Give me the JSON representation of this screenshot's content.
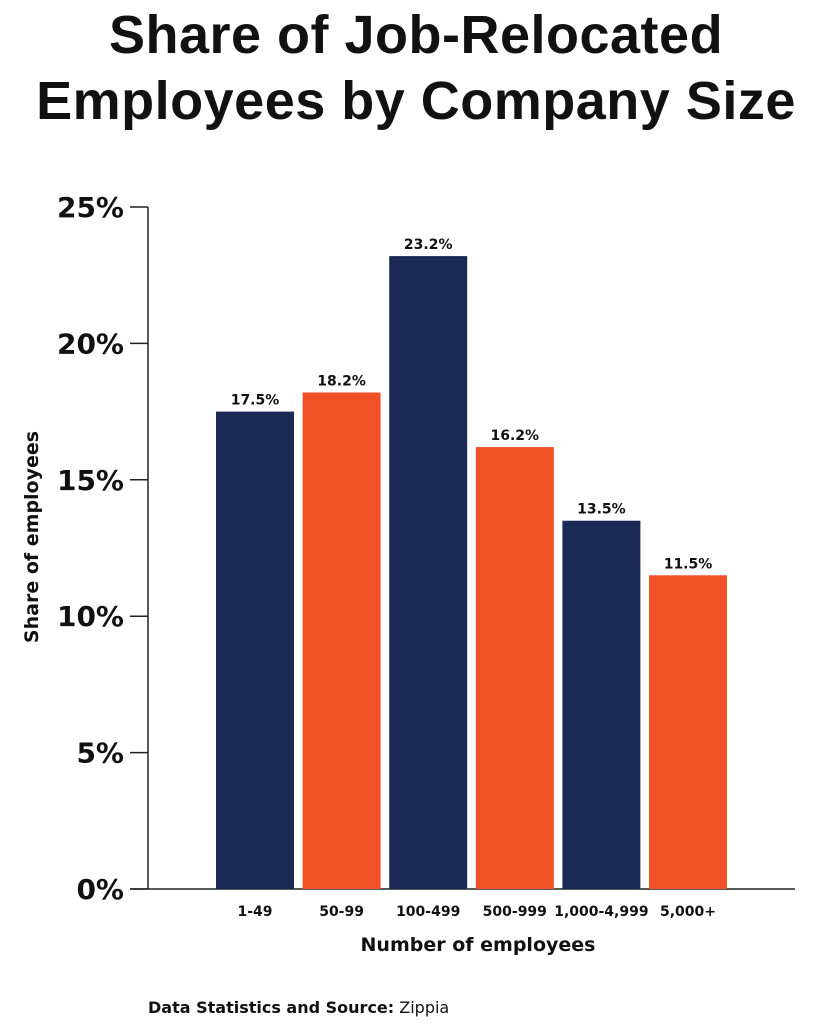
{
  "chart_data": {
    "type": "bar",
    "title": "Share of Job-Relocated Employees by Company Size",
    "categories": [
      "1-49",
      "50-99",
      "100-499",
      "500-999",
      "1,000-4,999",
      "5,000+"
    ],
    "values": [
      17.5,
      18.2,
      23.2,
      16.2,
      13.5,
      11.5
    ],
    "data_labels": [
      "17.5%",
      "18.2%",
      "23.2%",
      "16.2%",
      "13.5%",
      "11.5%"
    ],
    "xlabel": "Number of employees",
    "ylabel": "Share of employees",
    "ylim": [
      0,
      25
    ],
    "yticks": [
      0,
      5,
      10,
      15,
      20,
      25
    ],
    "ytick_labels": [
      "0%",
      "5%",
      "10%",
      "15%",
      "20%",
      "25%"
    ],
    "grid": false,
    "colors": [
      "#1b2a55",
      "#f05127",
      "#1b2a55",
      "#f05127",
      "#1b2a55",
      "#f05127"
    ]
  },
  "source": {
    "label": "Data Statistics and Source:",
    "value": "Zippia"
  }
}
